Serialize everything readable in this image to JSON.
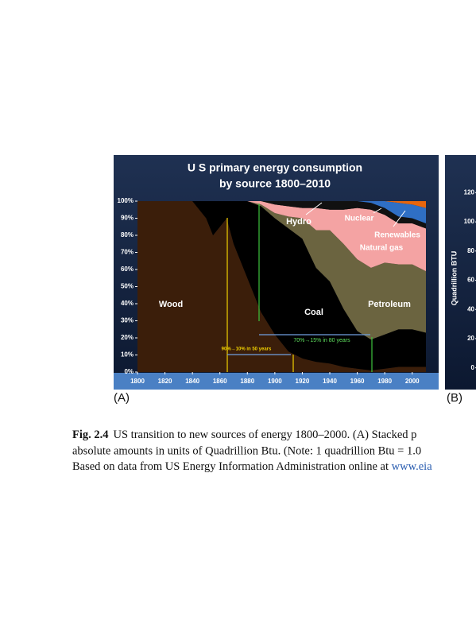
{
  "chart_data": [
    {
      "type": "stacked_area",
      "title": [
        "U S  primary energy consumption",
        "by source 1800–2010"
      ],
      "x": [
        1800,
        1820,
        1840,
        1850,
        1855,
        1865,
        1870,
        1880,
        1890,
        1900,
        1910,
        1920,
        1930,
        1940,
        1950,
        1960,
        1970,
        1980,
        1990,
        2000,
        2010
      ],
      "series": [
        {
          "name": "Wood",
          "color": "#3b1e0a",
          "values": [
            100,
            100,
            100,
            90,
            80,
            90,
            75,
            55,
            35,
            22,
            12,
            8,
            6,
            5,
            3,
            2,
            1,
            2,
            3,
            3,
            3
          ]
        },
        {
          "name": "Coal",
          "color": "#000000",
          "values": [
            0,
            0,
            0,
            10,
            20,
            10,
            25,
            45,
            62,
            68,
            72,
            70,
            55,
            48,
            34,
            22,
            18,
            20,
            22,
            22,
            20
          ]
        },
        {
          "name": "Petroleum",
          "color": "#6b6440",
          "values": [
            0,
            0,
            0,
            0,
            0,
            0,
            0,
            0,
            1,
            3,
            7,
            12,
            22,
            30,
            38,
            42,
            42,
            42,
            38,
            38,
            36
          ]
        },
        {
          "name": "Natural gas",
          "color": "#f4a3a3",
          "values": [
            0,
            0,
            0,
            0,
            0,
            0,
            0,
            0,
            2,
            5,
            6,
            6,
            13,
            12,
            20,
            30,
            34,
            28,
            24,
            24,
            25
          ]
        },
        {
          "name": "Hydro",
          "color": "#111111",
          "values": [
            0,
            0,
            0,
            0,
            0,
            0,
            0,
            0,
            0,
            2,
            3,
            4,
            4,
            5,
            5,
            4,
            4,
            4,
            4,
            3,
            3
          ]
        },
        {
          "name": "Nuclear",
          "color": "#2f6fc4",
          "values": [
            0,
            0,
            0,
            0,
            0,
            0,
            0,
            0,
            0,
            0,
            0,
            0,
            0,
            0,
            0,
            0,
            1,
            4,
            8,
            8,
            9
          ]
        },
        {
          "name": "Renewables",
          "color": "#e8660c",
          "values": [
            0,
            0,
            0,
            0,
            0,
            0,
            0,
            0,
            0,
            0,
            0,
            0,
            0,
            0,
            0,
            0,
            0,
            0,
            1,
            2,
            4
          ]
        }
      ],
      "xlim": [
        1800,
        2010
      ],
      "ylim": [
        0,
        100
      ],
      "xticks": [
        1800,
        1820,
        1840,
        1860,
        1880,
        1900,
        1920,
        1940,
        1960,
        1980,
        2000
      ],
      "yticks": [
        {
          "value": 0,
          "label": "0%"
        },
        {
          "value": 10,
          "label": "10%"
        },
        {
          "value": 20,
          "label": "20%"
        },
        {
          "value": 30,
          "label": "30%"
        },
        {
          "value": 40,
          "label": "40%"
        },
        {
          "value": 50,
          "label": "50%"
        },
        {
          "value": 60,
          "label": "60%"
        },
        {
          "value": 70,
          "label": "70%"
        },
        {
          "value": 80,
          "label": "80%"
        },
        {
          "value": 90,
          "label": "90%"
        },
        {
          "value": 100,
          "label": "100%"
        }
      ],
      "annotations": [
        "90%→10% in 50 years",
        "70%→15% in 80 years"
      ],
      "panel_label": "(A)"
    },
    {
      "type": "area",
      "ylabel": "Quadrillion BTU",
      "ylim": [
        -10,
        130
      ],
      "yticks": [
        0,
        20,
        40,
        60,
        80,
        100,
        120
      ],
      "panel_label": "(B)"
    }
  ],
  "caption": {
    "label": "Fig. 2.4",
    "line1": "US transition to new sources of energy 1800–2000. (A) Stacked p",
    "line2": "absolute amounts in units of Quadrillion Btu. (Note: 1 quadrillion Btu = 1.0",
    "line3": "Based on data from US Energy Information Administration online at ",
    "link": "www.eia"
  }
}
